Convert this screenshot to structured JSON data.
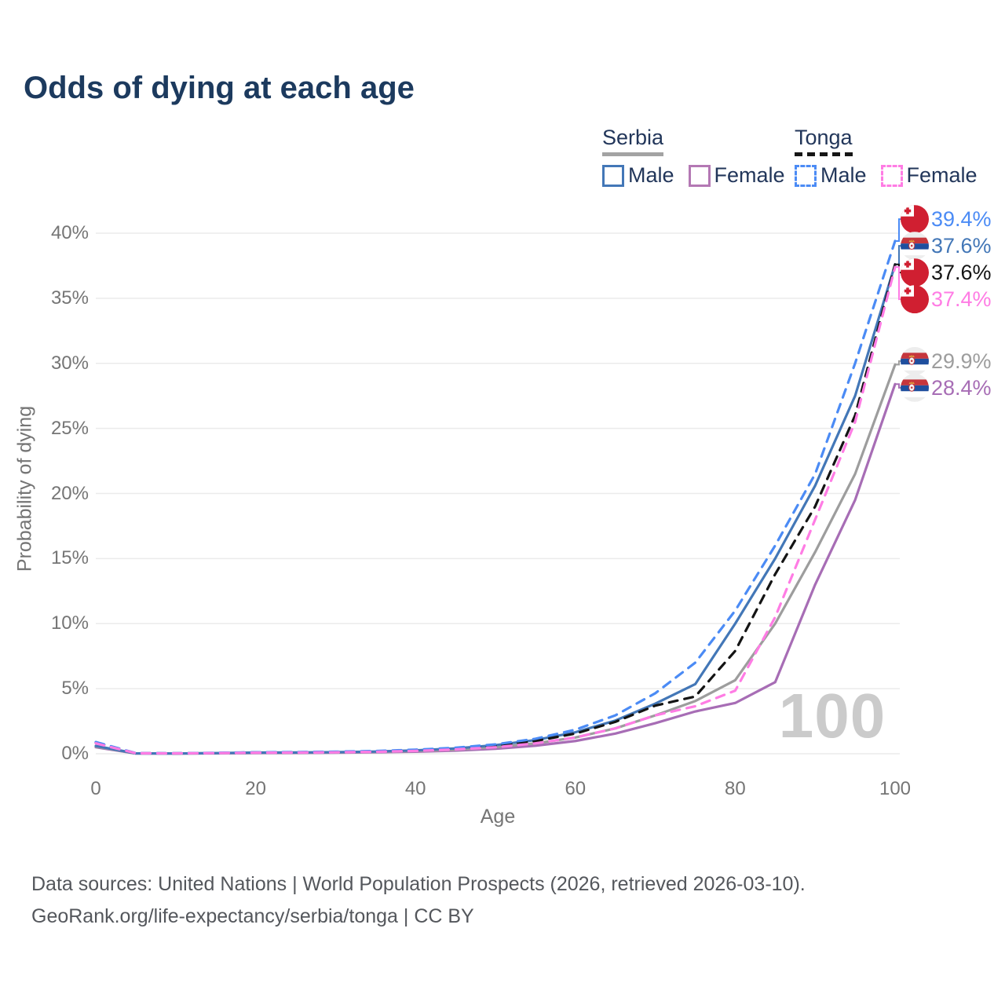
{
  "page": {
    "title": "Odds of dying at each age"
  },
  "legend": {
    "groups": [
      {
        "country": "Serbia",
        "line_style": "solid",
        "underline_color": "#a3a3a3",
        "items": [
          {
            "label": "Male",
            "color": "#4377b7",
            "dash": false
          },
          {
            "label": "Female",
            "color": "#b478b4",
            "dash": false
          }
        ]
      },
      {
        "country": "Tonga",
        "line_style": "dashed",
        "underline_color": "#161616",
        "items": [
          {
            "label": "Male",
            "color": "#4b8bf5",
            "dash": true
          },
          {
            "label": "Female",
            "color": "#ff7ce4",
            "dash": true
          }
        ]
      }
    ]
  },
  "chart_data": {
    "type": "line",
    "title": "Odds of dying at each age",
    "xlabel": "Age",
    "ylabel": "Probability of dying",
    "xlim": [
      0,
      100
    ],
    "ylim": [
      0,
      40
    ],
    "grid": true,
    "x_ticks": [
      0,
      20,
      40,
      60,
      80,
      100
    ],
    "y_ticks": [
      0,
      5,
      10,
      15,
      20,
      25,
      30,
      35,
      40
    ],
    "y_tick_labels": [
      "0%",
      "5%",
      "10%",
      "15%",
      "20%",
      "25%",
      "30%",
      "35%",
      "40%"
    ],
    "x": [
      0,
      5,
      10,
      15,
      20,
      25,
      30,
      35,
      40,
      45,
      50,
      55,
      60,
      65,
      70,
      75,
      80,
      85,
      90,
      95,
      100
    ],
    "series": [
      {
        "name": "Serbia Female",
        "country": "Serbia",
        "sex": "Female",
        "color": "#a76db5",
        "dash": false,
        "flag": "serbia",
        "end_label": "28.4%",
        "values": [
          0.5,
          0.02,
          0.02,
          0.03,
          0.05,
          0.06,
          0.08,
          0.11,
          0.16,
          0.24,
          0.38,
          0.62,
          0.98,
          1.55,
          2.35,
          3.25,
          3.9,
          5.5,
          13.0,
          19.5,
          28.4
        ]
      },
      {
        "name": "Serbia (both sexes)",
        "country": "Serbia",
        "sex": "Both",
        "color": "#9d9d9d",
        "dash": false,
        "flag": "serbia",
        "end_label": "29.9%",
        "values": [
          0.55,
          0.03,
          0.02,
          0.04,
          0.07,
          0.08,
          0.1,
          0.14,
          0.21,
          0.31,
          0.5,
          0.8,
          1.25,
          1.95,
          2.95,
          4.05,
          5.65,
          10.0,
          15.5,
          21.5,
          29.9
        ]
      },
      {
        "name": "Serbia Male",
        "country": "Serbia",
        "sex": "Male",
        "color": "#4377b7",
        "dash": false,
        "flag": "serbia",
        "end_label": "37.6%",
        "values": [
          0.6,
          0.03,
          0.02,
          0.05,
          0.09,
          0.1,
          0.12,
          0.17,
          0.26,
          0.41,
          0.66,
          1.05,
          1.65,
          2.55,
          3.85,
          5.35,
          10.0,
          15.0,
          20.6,
          27.5,
          37.6
        ]
      },
      {
        "name": "Tonga (both sexes)",
        "country": "Tonga",
        "sex": "Both",
        "color": "#141414",
        "dash": true,
        "flag": "tonga",
        "end_label": "37.6%",
        "values": [
          0.85,
          0.04,
          0.03,
          0.06,
          0.1,
          0.11,
          0.14,
          0.19,
          0.28,
          0.42,
          0.63,
          0.98,
          1.55,
          2.45,
          3.7,
          4.4,
          7.9,
          13.8,
          19.0,
          26.0,
          37.6
        ]
      },
      {
        "name": "Tonga Male",
        "country": "Tonga",
        "sex": "Male",
        "color": "#4b8bf5",
        "dash": true,
        "flag": "tonga",
        "end_label": "39.4%",
        "values": [
          0.9,
          0.05,
          0.04,
          0.07,
          0.11,
          0.13,
          0.16,
          0.21,
          0.31,
          0.46,
          0.72,
          1.15,
          1.85,
          2.95,
          4.65,
          7.0,
          11.0,
          16.0,
          21.5,
          30.0,
          39.4
        ]
      },
      {
        "name": "Tonga Female",
        "country": "Tonga",
        "sex": "Female",
        "color": "#ff7ce4",
        "dash": true,
        "flag": "tonga",
        "end_label": "37.4%",
        "values": [
          0.8,
          0.04,
          0.03,
          0.05,
          0.08,
          0.09,
          0.11,
          0.15,
          0.22,
          0.33,
          0.5,
          0.8,
          1.25,
          1.95,
          2.95,
          3.65,
          4.85,
          10.5,
          18.0,
          25.5,
          37.4
        ]
      }
    ],
    "end_annotation_x": "100",
    "legend_position": "top-right"
  },
  "watermark": "100",
  "footer": {
    "line1": "Data sources: United Nations | World Population Prospects (2026, retrieved 2026-03-10).",
    "line2": "GeoRank.org/life-expectancy/serbia/tonga | CC BY"
  },
  "colors": {
    "title": "#1c3a5e",
    "gridline": "#ebebeb",
    "tick_text": "#757575",
    "watermark": "#cbcbcb",
    "footer_text": "#54575c",
    "tonga_flag_red": "#d01f31",
    "serbia_flag_red": "#c6363c",
    "serbia_flag_blue": "#1f4f9e"
  }
}
